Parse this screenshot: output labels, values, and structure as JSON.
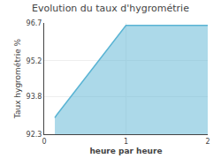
{
  "chart_data": {
    "type": "area",
    "title": "Evolution du taux d'hygrométrie",
    "xlabel": "heure par heure",
    "ylabel": "Taux hygrométrie %",
    "x": [
      0.13,
      0.15,
      1.0,
      2.0
    ],
    "values": [
      92.95,
      93.05,
      96.6,
      96.6
    ],
    "color": "#5ab4d4",
    "xlim": [
      0,
      2
    ],
    "xticks": [
      0,
      1,
      2
    ],
    "ylim": [
      92.3,
      96.7
    ],
    "yticks": [
      92.3,
      93.8,
      95.2,
      96.7
    ],
    "grid": true
  }
}
